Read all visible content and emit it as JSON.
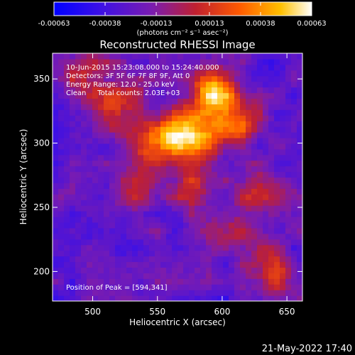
{
  "chart_data": {
    "type": "heatmap",
    "title": "Reconstructed RHESSI Image",
    "xlabel": "Heliocentric X (arcsec)",
    "ylabel": "Heliocentric Y (arcsec)",
    "xlim": [
      469,
      662
    ],
    "ylim": [
      177,
      370
    ],
    "x_ticks": [
      500,
      550,
      600,
      650
    ],
    "y_ticks": [
      200,
      250,
      300,
      350
    ],
    "colorbar": {
      "min": -0.00063,
      "max": 0.00063,
      "tick_values": [
        -0.00063,
        -0.00038,
        -0.00013,
        0.00013,
        0.00038,
        0.00063
      ],
      "tick_labels": [
        "-0.00063",
        "-0.00038",
        "-0.00013",
        "0.00013",
        "0.00038",
        "0.00063"
      ],
      "units": "(photons cm⁻² s⁻¹ asec⁻²)"
    },
    "annotations": [
      "10-Jun-2015 15:23:08.000 to 15:24:40.000",
      "Detectors: 3F 5F 6F 7F 8F 9F, Att 0",
      "Energy Range: 12.0 - 25.0 keV",
      "Clean     Total counts: 2.03E+03"
    ],
    "peak_label": "Position of Peak = [594,341]",
    "peak": [
      594,
      341
    ],
    "emission_sources": [
      {
        "x": 594,
        "y": 341,
        "level": 1.0
      },
      {
        "x": 565,
        "y": 308,
        "level": 0.85
      },
      {
        "x": 585,
        "y": 305,
        "level": 0.7
      },
      {
        "x": 612,
        "y": 318,
        "level": 0.6
      },
      {
        "x": 545,
        "y": 300,
        "level": 0.55
      },
      {
        "x": 520,
        "y": 332,
        "level": 0.5
      },
      {
        "x": 495,
        "y": 352,
        "level": 0.45
      },
      {
        "x": 630,
        "y": 262,
        "level": 0.45
      },
      {
        "x": 640,
        "y": 200,
        "level": 0.5
      },
      {
        "x": 605,
        "y": 232,
        "level": 0.35
      },
      {
        "x": 532,
        "y": 258,
        "level": 0.3
      },
      {
        "x": 575,
        "y": 268,
        "level": 0.35
      }
    ],
    "grid": false
  },
  "footer": {
    "date": "21-May-2022 17:40"
  }
}
